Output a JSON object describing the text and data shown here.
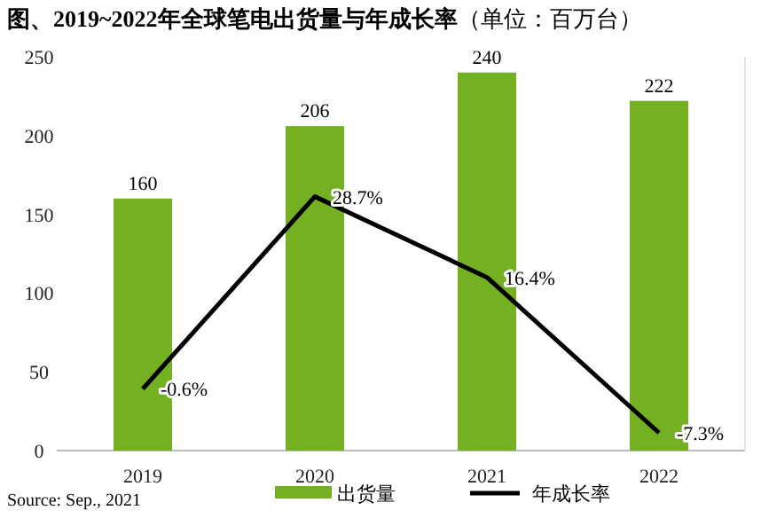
{
  "chart_data": {
    "type": "bar",
    "title": "图、2019~2022年全球笔电出货量与年成长率",
    "subtitle": "（单位：百万台）",
    "categories": [
      "2019",
      "2020",
      "2021",
      "2022"
    ],
    "series": [
      {
        "name": "出货量",
        "color": "#73b022",
        "values": [
          160,
          206,
          240,
          222
        ],
        "value_labels": [
          "160",
          "206",
          "240",
          "222"
        ]
      },
      {
        "name": "年成长率",
        "type": "line",
        "axis": "y2",
        "color": "#000000",
        "values": [
          -0.6,
          28.7,
          16.4,
          -7.3
        ],
        "value_labels": [
          "-0.6%",
          "28.7%",
          "16.4%",
          "-7.3%"
        ]
      }
    ],
    "ylim": [
      0,
      250
    ],
    "yticks": [
      0,
      50,
      100,
      150,
      200,
      250
    ],
    "y2lim": [
      -10,
      50
    ],
    "tick_labels": "y",
    "grid": false,
    "legend": "bottom",
    "marker": "none",
    "line_style": "solid",
    "annotations": [
      "Source: Sep., 2021"
    ]
  }
}
